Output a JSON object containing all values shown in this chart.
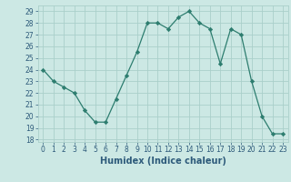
{
  "x": [
    0,
    1,
    2,
    3,
    4,
    5,
    6,
    7,
    8,
    9,
    10,
    11,
    12,
    13,
    14,
    15,
    16,
    17,
    18,
    19,
    20,
    21,
    22,
    23
  ],
  "y": [
    24,
    23,
    22.5,
    22,
    20.5,
    19.5,
    19.5,
    21.5,
    23.5,
    25.5,
    28,
    28,
    27.5,
    28.5,
    29,
    28,
    27.5,
    24.5,
    27.5,
    27,
    23,
    20,
    18.5,
    18.5
  ],
  "xlabel": "Humidex (Indice chaleur)",
  "line_color": "#2d7d6f",
  "bg_color": "#cce8e4",
  "grid_color": "#aacfca",
  "ylim_min": 17.8,
  "ylim_max": 29.5,
  "xlim_min": -0.5,
  "xlim_max": 23.5,
  "yticks": [
    18,
    19,
    20,
    21,
    22,
    23,
    24,
    25,
    26,
    27,
    28,
    29
  ],
  "xticks": [
    0,
    1,
    2,
    3,
    4,
    5,
    6,
    7,
    8,
    9,
    10,
    11,
    12,
    13,
    14,
    15,
    16,
    17,
    18,
    19,
    20,
    21,
    22,
    23
  ],
  "tick_fontsize": 5.5,
  "xlabel_fontsize": 7,
  "tick_color": "#2d5a7a",
  "xlabel_color": "#2d5a7a"
}
